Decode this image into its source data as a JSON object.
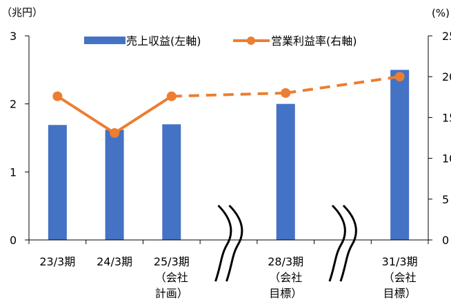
{
  "chart_data": {
    "type": "bar+line",
    "left_unit": "（兆円）",
    "right_unit": "(%)",
    "categories": [
      [
        "23/3期"
      ],
      [
        "24/3期"
      ],
      [
        "25/3期",
        "（会社",
        "計画）"
      ],
      [
        ""
      ],
      [
        "28/3期",
        "（会社",
        "目標）"
      ],
      [
        ""
      ],
      [
        "31/3期",
        "（会社",
        "目標）"
      ]
    ],
    "series": [
      {
        "name": "売上収益(左軸)",
        "axis": "left",
        "type": "bar",
        "color": "#4472C4",
        "values": [
          1.69,
          1.62,
          1.7,
          null,
          2.0,
          null,
          2.5
        ]
      },
      {
        "name": "営業利益率(右軸)",
        "axis": "right",
        "type": "line",
        "color": "#ED7D31",
        "values": [
          17.6,
          13.1,
          17.6,
          null,
          18.0,
          null,
          20.0
        ],
        "solid_until_index": 2
      }
    ],
    "left_axis": {
      "min": 0,
      "max": 3,
      "ticks": [
        0,
        1,
        2,
        3
      ]
    },
    "right_axis": {
      "min": 0,
      "max": 25,
      "ticks": [
        0,
        5,
        10,
        15,
        20,
        25
      ]
    },
    "axis_breaks_after_index": [
      2,
      4
    ],
    "legend_position": "top"
  }
}
